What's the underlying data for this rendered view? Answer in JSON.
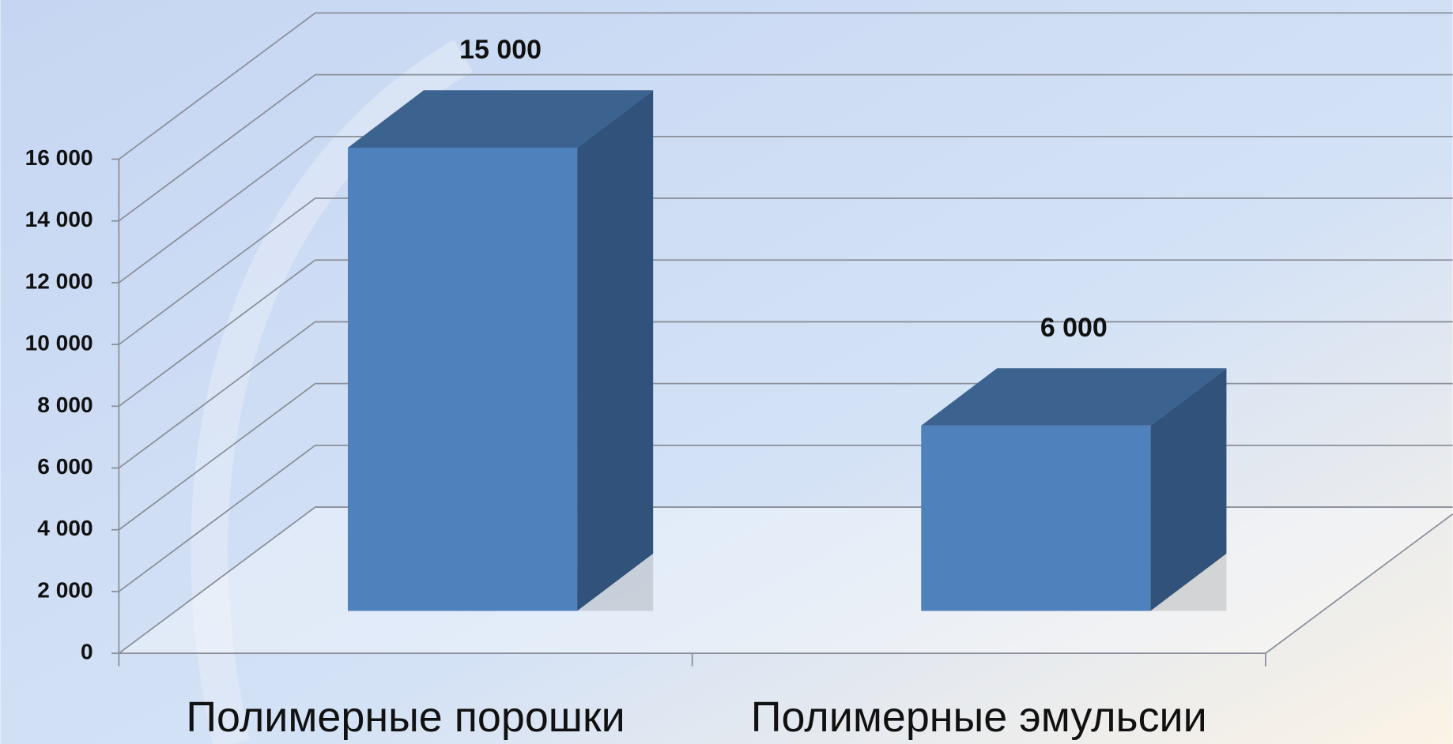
{
  "chart_data": {
    "type": "bar3d",
    "categories": [
      "Полимерные порошки",
      "Полимерные эмульсии"
    ],
    "values": [
      15000,
      6000
    ],
    "value_labels": [
      "15 000",
      "6 000"
    ],
    "color": "#4f81bd",
    "ylim": [
      0,
      16000
    ],
    "yticks": [
      {
        "value": 0,
        "label": "0"
      },
      {
        "value": 2000,
        "label": "2 000"
      },
      {
        "value": 4000,
        "label": "4 000"
      },
      {
        "value": 6000,
        "label": "6 000"
      },
      {
        "value": 8000,
        "label": "8 000"
      },
      {
        "value": 10000,
        "label": "10 000"
      },
      {
        "value": 12000,
        "label": "12 000"
      },
      {
        "value": 14000,
        "label": "14 000"
      },
      {
        "value": 16000,
        "label": "16 000"
      }
    ],
    "grid": true
  }
}
